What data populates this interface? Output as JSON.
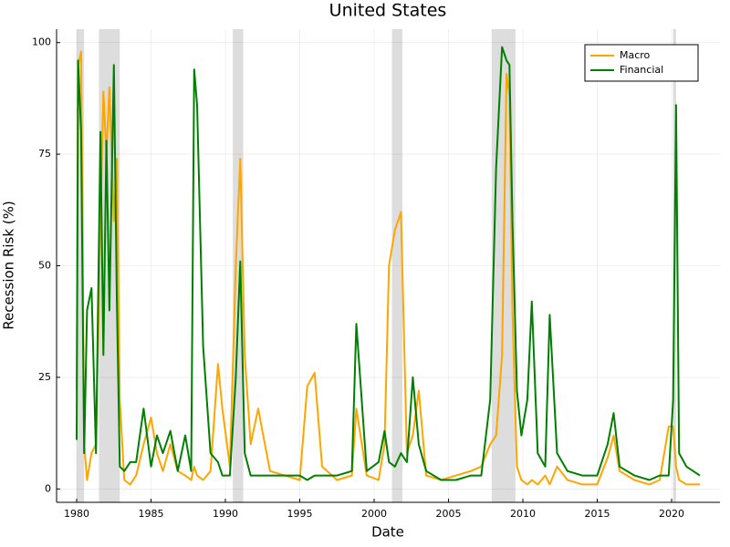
{
  "chart_data": {
    "type": "line",
    "title": "United States",
    "x_label": "Date",
    "y_label": "Recession Risk (%)",
    "x": [
      1980.0,
      1980.1,
      1980.3,
      1980.5,
      1980.7,
      1981.0,
      1981.3,
      1981.6,
      1981.8,
      1982.0,
      1982.2,
      1982.5,
      1982.7,
      1982.9,
      1983.2,
      1983.6,
      1984.0,
      1984.5,
      1985.0,
      1985.4,
      1985.8,
      1986.3,
      1986.8,
      1987.3,
      1987.7,
      1987.9,
      1988.1,
      1988.5,
      1989.0,
      1989.5,
      1989.8,
      1990.3,
      1990.7,
      1991.0,
      1991.3,
      1991.7,
      1992.2,
      1993.0,
      1994.0,
      1995.0,
      1995.5,
      1996.0,
      1996.5,
      1997.5,
      1998.5,
      1998.8,
      1999.5,
      2000.3,
      2000.7,
      2001.0,
      2001.4,
      2001.8,
      2002.2,
      2002.6,
      2003.0,
      2003.5,
      2004.5,
      2005.5,
      2006.5,
      2007.2,
      2007.8,
      2008.2,
      2008.6,
      2008.9,
      2009.1,
      2009.3,
      2009.6,
      2009.9,
      2010.3,
      2010.6,
      2011.0,
      2011.5,
      2011.8,
      2012.3,
      2013.0,
      2014.0,
      2015.0,
      2015.7,
      2016.1,
      2016.5,
      2017.5,
      2018.5,
      2019.2,
      2019.8,
      2020.1,
      2020.3,
      2020.5,
      2021.0,
      2021.9
    ],
    "series": [
      {
        "name": "Macro",
        "color": "#ffa500",
        "values": [
          22,
          95,
          98,
          10,
          2,
          8,
          10,
          60,
          89,
          75,
          90,
          60,
          74,
          20,
          2,
          1,
          3,
          10,
          16,
          8,
          4,
          10,
          4,
          3,
          2,
          5,
          3,
          2,
          4,
          28,
          18,
          5,
          50,
          74,
          30,
          10,
          18,
          4,
          3,
          2,
          23,
          26,
          5,
          2,
          3,
          18,
          3,
          2,
          10,
          50,
          58,
          62,
          8,
          12,
          22,
          3,
          2,
          3,
          4,
          5,
          10,
          12,
          30,
          93,
          88,
          40,
          5,
          2,
          1,
          2,
          1,
          3,
          1,
          5,
          2,
          1,
          1,
          7,
          12,
          4,
          2,
          1,
          2,
          14,
          14,
          5,
          2,
          1,
          1
        ]
      },
      {
        "name": "Financial",
        "color": "#008000",
        "values": [
          11,
          96,
          80,
          8,
          40,
          45,
          8,
          80,
          30,
          78,
          40,
          95,
          43,
          5,
          4,
          6,
          6,
          18,
          5,
          12,
          8,
          13,
          4,
          12,
          4,
          94,
          86,
          32,
          8,
          6,
          3,
          3,
          25,
          51,
          8,
          3,
          3,
          3,
          3,
          3,
          2,
          3,
          3,
          3,
          4,
          37,
          4,
          6,
          13,
          6,
          5,
          8,
          6,
          25,
          10,
          4,
          2,
          2,
          3,
          3,
          20,
          72,
          99,
          96,
          95,
          60,
          22,
          12,
          20,
          42,
          8,
          5,
          39,
          8,
          4,
          3,
          3,
          10,
          17,
          5,
          3,
          2,
          3,
          3,
          20,
          86,
          8,
          5,
          3
        ]
      }
    ],
    "recessions": [
      [
        1980.0,
        1980.5
      ],
      [
        1981.5,
        1982.9
      ],
      [
        1990.5,
        1991.2
      ],
      [
        2001.2,
        2001.9
      ],
      [
        2007.9,
        2009.5
      ],
      [
        2020.1,
        2020.3
      ]
    ],
    "xlim": [
      1978.65,
      2023.25
    ],
    "ylim": [
      -3,
      103
    ],
    "xticks": [
      1980,
      1985,
      1990,
      1995,
      2000,
      2005,
      2010,
      2015,
      2020
    ],
    "yticks": [
      0,
      25,
      50,
      75,
      100
    ],
    "grid": true,
    "legend": "upper right"
  }
}
